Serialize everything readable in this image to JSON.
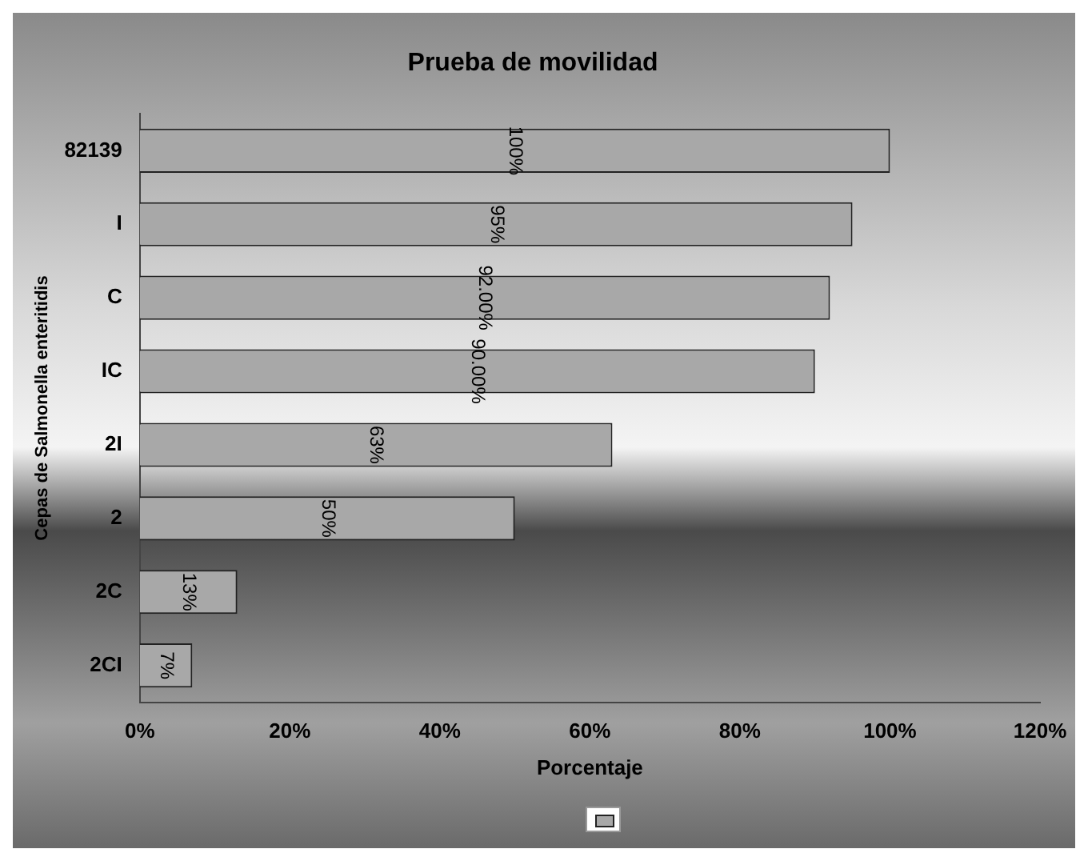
{
  "chart_data": {
    "type": "bar",
    "orientation": "horizontal",
    "title": "Prueba de movilidad",
    "xlabel": "Porcentaje",
    "ylabel": "Cepas de Salmonella enteritidis",
    "categories": [
      "82139",
      "I",
      "C",
      "IC",
      "2I",
      "2",
      "2C",
      "2CI"
    ],
    "series": [
      {
        "color": "#a8a8a8",
        "values": [
          100,
          95,
          92,
          90,
          63,
          50,
          13,
          7
        ],
        "value_labels": [
          "100%",
          "95%",
          "92.00%",
          "90.00%",
          "63%",
          "50%",
          "13%",
          "7%"
        ]
      }
    ],
    "xlim": [
      0,
      120
    ],
    "xticks": [
      {
        "value": 0,
        "label": "0%"
      },
      {
        "value": 20,
        "label": "20%"
      },
      {
        "value": 40,
        "label": "40%"
      },
      {
        "value": 60,
        "label": "60%"
      },
      {
        "value": 80,
        "label": "80%"
      },
      {
        "value": 100,
        "label": "100%"
      },
      {
        "value": 120,
        "label": "120%"
      }
    ],
    "grid": false
  }
}
